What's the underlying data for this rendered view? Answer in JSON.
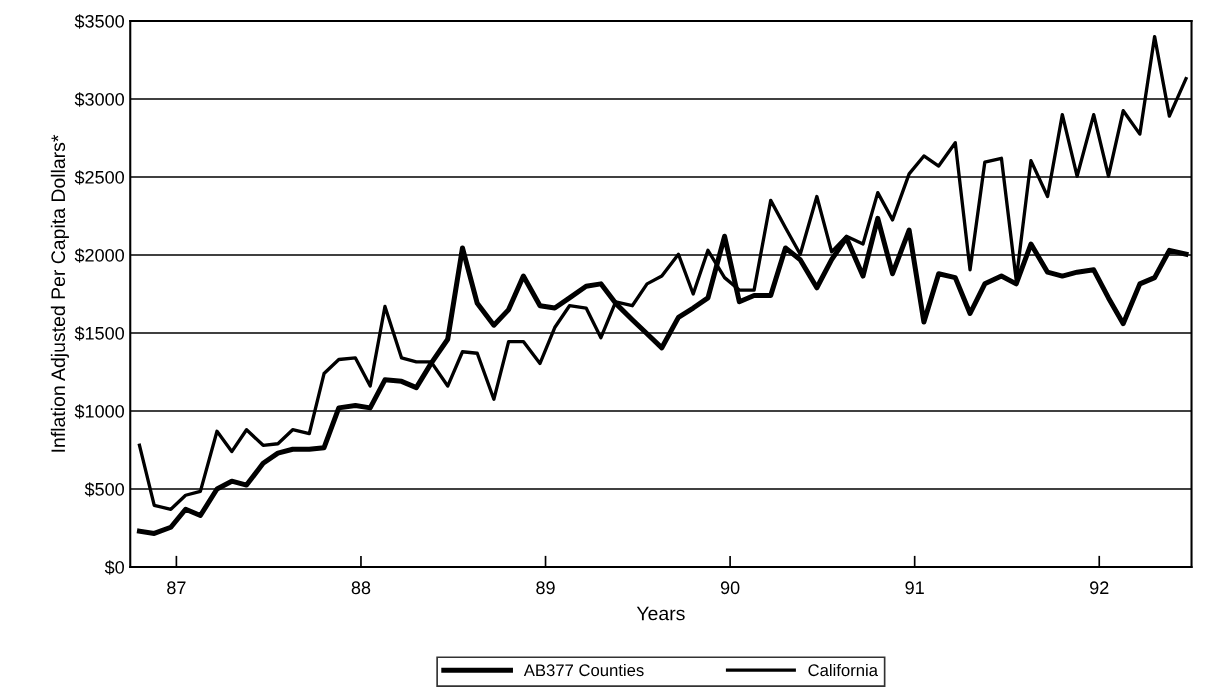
{
  "chart_data": {
    "type": "line",
    "xlabel": "Years",
    "ylabel": "Inflation Adjusted Per Capita Dollars*",
    "x": [
      86.8,
      86.88,
      86.97,
      87.05,
      87.13,
      87.22,
      87.3,
      87.38,
      87.47,
      87.55,
      87.63,
      87.72,
      87.8,
      87.88,
      87.97,
      88.05,
      88.13,
      88.22,
      88.3,
      88.38,
      88.47,
      88.55,
      88.63,
      88.72,
      88.8,
      88.88,
      88.97,
      89.05,
      89.13,
      89.22,
      89.3,
      89.38,
      89.47,
      89.55,
      89.63,
      89.72,
      89.8,
      89.88,
      89.97,
      90.05,
      90.13,
      90.22,
      90.3,
      90.38,
      90.47,
      90.55,
      90.63,
      90.72,
      90.8,
      90.88,
      90.97,
      91.05,
      91.13,
      91.22,
      91.3,
      91.38,
      91.47,
      91.55,
      91.63,
      91.72,
      91.8,
      91.88,
      91.97,
      92.05,
      92.13,
      92.22,
      92.3,
      92.38,
      92.47
    ],
    "series": [
      {
        "name": "AB377 Counties",
        "color": "#000000",
        "values": [
          230,
          215,
          255,
          370,
          330,
          500,
          550,
          525,
          665,
          730,
          755,
          755,
          765,
          1020,
          1035,
          1020,
          1200,
          1190,
          1150,
          1305,
          1460,
          2045,
          1690,
          1550,
          1650,
          1865,
          1675,
          1660,
          1725,
          1800,
          1815,
          1690,
          1585,
          1495,
          1405,
          1600,
          1660,
          1725,
          2120,
          1700,
          1740,
          1740,
          2045,
          1970,
          1790,
          1970,
          2110,
          1865,
          2235,
          1880,
          2160,
          1570,
          1880,
          1855,
          1625,
          1815,
          1865,
          1815,
          2070,
          1890,
          1865,
          1890,
          1905,
          1725,
          1560,
          1815,
          1855,
          2030,
          2005
        ]
      },
      {
        "name": "California",
        "color": "#000000",
        "values": [
          780,
          395,
          370,
          460,
          485,
          870,
          740,
          880,
          780,
          790,
          880,
          855,
          1240,
          1330,
          1340,
          1160,
          1670,
          1340,
          1315,
          1315,
          1160,
          1380,
          1370,
          1075,
          1445,
          1445,
          1305,
          1535,
          1675,
          1660,
          1470,
          1700,
          1675,
          1815,
          1865,
          2005,
          1750,
          2030,
          1855,
          1775,
          1775,
          2350,
          2175,
          2005,
          2375,
          2020,
          2120,
          2070,
          2400,
          2225,
          2520,
          2635,
          2570,
          2720,
          1905,
          2595,
          2620,
          1840,
          2605,
          2375,
          2900,
          2505,
          2900,
          2505,
          2925,
          2775,
          3400,
          2890,
          3130
        ]
      }
    ],
    "xlim": [
      86.75,
      92.5
    ],
    "xticks": [
      87,
      88,
      89,
      90,
      91,
      92
    ],
    "ylim": [
      0,
      3500
    ],
    "yticks": [
      {
        "value": 0,
        "label": "$0"
      },
      {
        "value": 500,
        "label": "$500"
      },
      {
        "value": 1000,
        "label": "$1000"
      },
      {
        "value": 1500,
        "label": "$1500"
      },
      {
        "value": 2000,
        "label": "$2000"
      },
      {
        "value": 2500,
        "label": "$2500"
      },
      {
        "value": 3000,
        "label": "$3000"
      },
      {
        "value": 3500,
        "label": "$3500"
      }
    ],
    "grid": "y",
    "legend": "bottom",
    "marker": "none",
    "line_style": "solid"
  }
}
